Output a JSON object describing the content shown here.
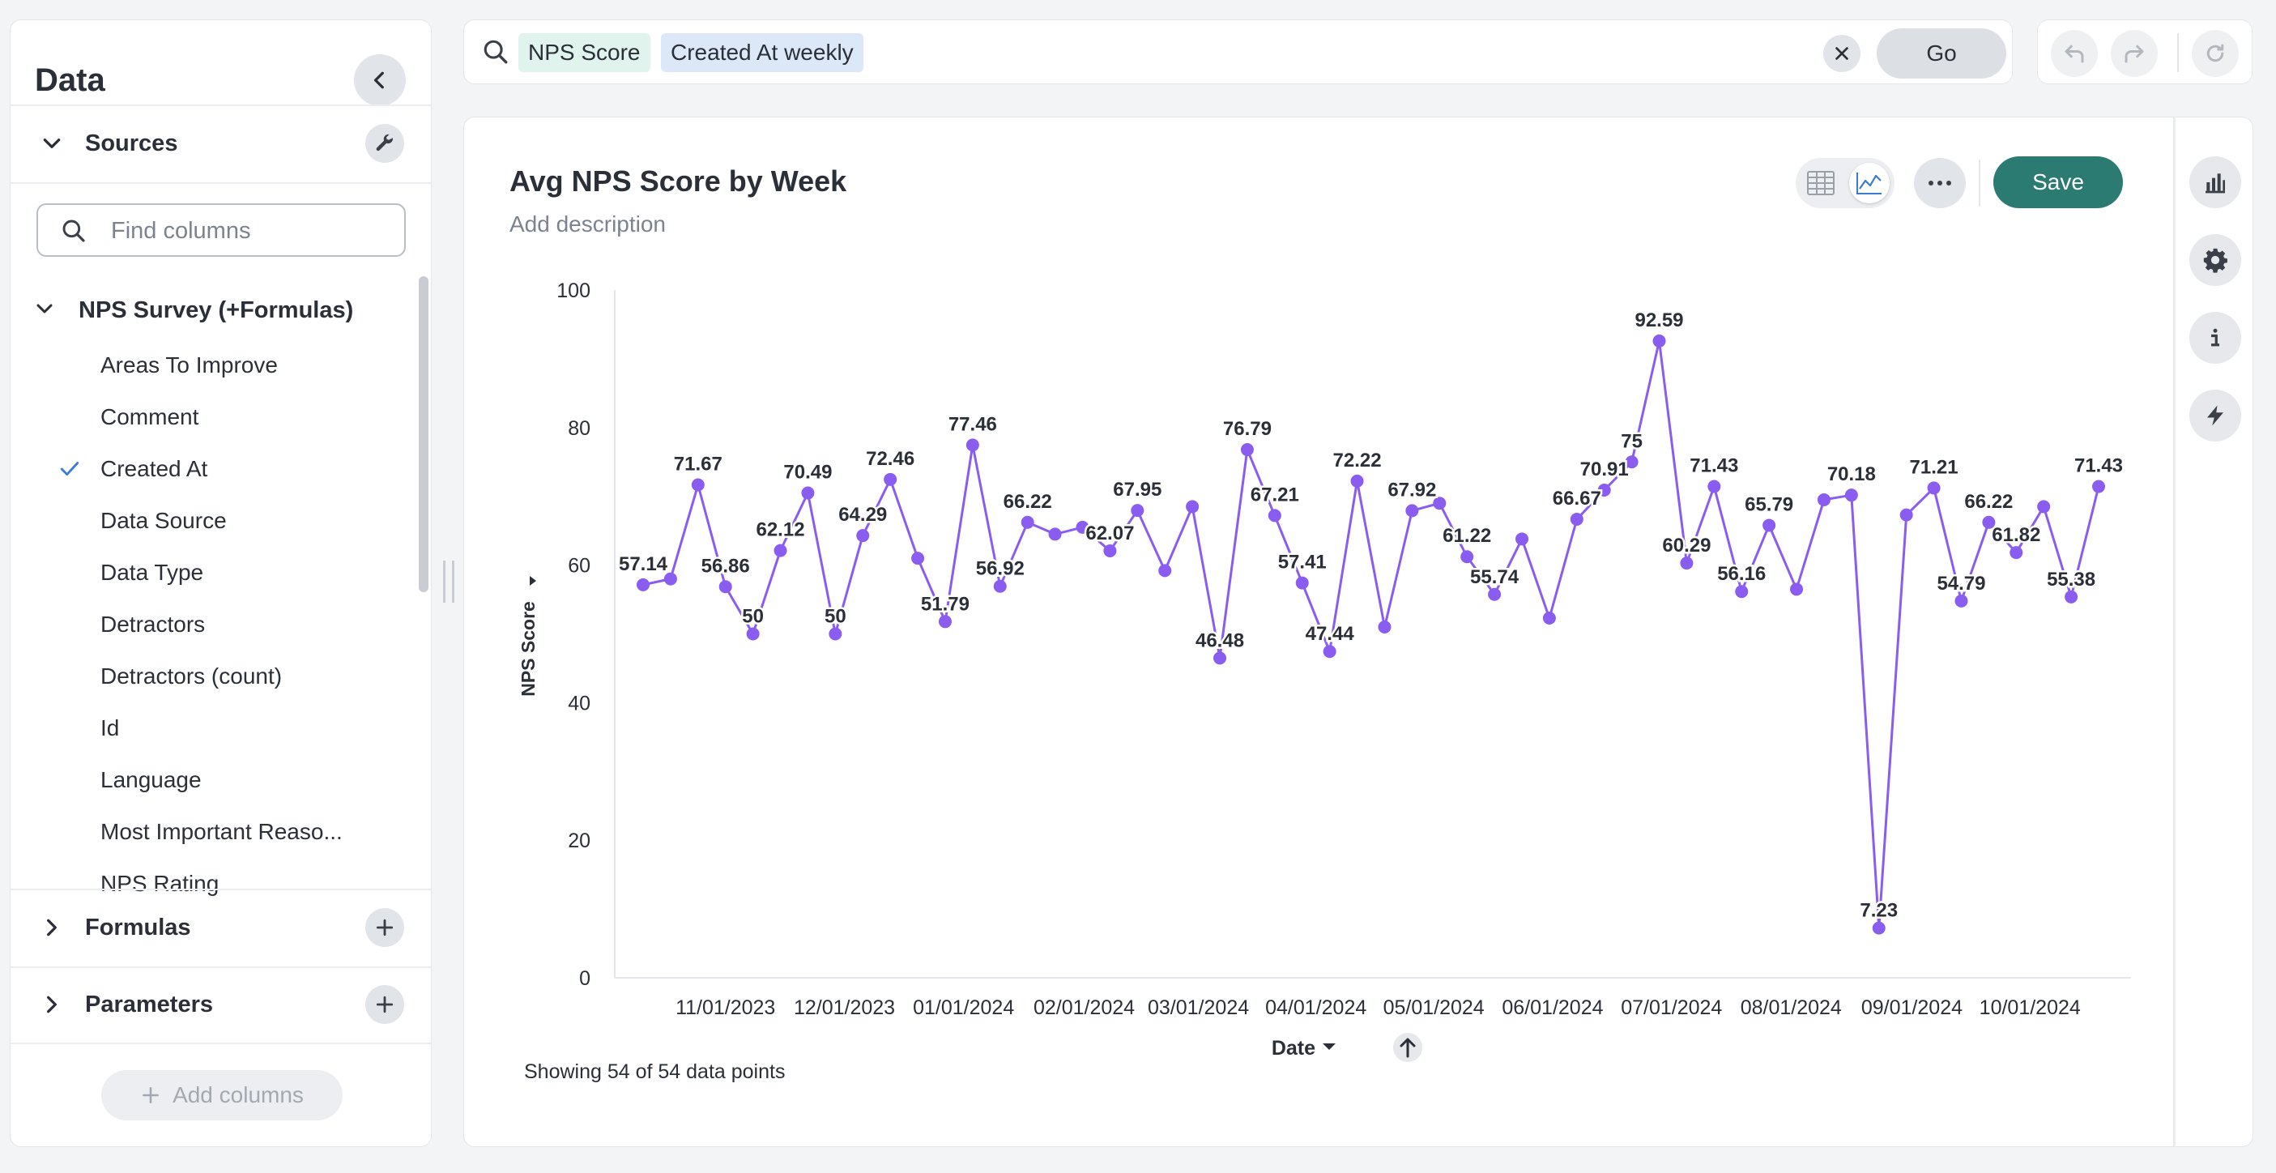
{
  "sidebar": {
    "title": "Data",
    "sources_label": "Sources",
    "find_placeholder": "Find columns",
    "dataset_name": "NPS Survey (+Formulas)",
    "columns": [
      {
        "label": "Areas To Improve",
        "selected": false
      },
      {
        "label": "Comment",
        "selected": false
      },
      {
        "label": "Created At",
        "selected": true
      },
      {
        "label": "Data Source",
        "selected": false
      },
      {
        "label": "Data Type",
        "selected": false
      },
      {
        "label": "Detractors",
        "selected": false
      },
      {
        "label": "Detractors (count)",
        "selected": false
      },
      {
        "label": "Id",
        "selected": false
      },
      {
        "label": "Language",
        "selected": false
      },
      {
        "label": "Most Important Reaso...",
        "selected": false
      },
      {
        "label": "NPS Rating",
        "selected": false
      }
    ],
    "formulas_label": "Formulas",
    "parameters_label": "Parameters",
    "add_columns_label": "Add columns"
  },
  "query": {
    "chips": [
      "NPS Score",
      "Created At weekly"
    ],
    "go_label": "Go"
  },
  "main": {
    "title": "Avg NPS Score by Week",
    "description_placeholder": "Add description",
    "save_label": "Save",
    "footer": "Showing 54 of 54 data points",
    "x_axis_title": "Date"
  },
  "colors": {
    "accent": "#2c7b72",
    "series": "#8b5cf0"
  },
  "chart_data": {
    "type": "line",
    "title": "Avg NPS Score by Week",
    "xlabel": "Date",
    "ylabel": "NPS Score",
    "ylim": [
      0,
      100
    ],
    "yticks": [
      0,
      20,
      40,
      60,
      80,
      100
    ],
    "grid": false,
    "x_tick_labels": [
      "11/01/2023",
      "12/01/2023",
      "01/01/2024",
      "02/01/2024",
      "03/01/2024",
      "04/01/2024",
      "05/01/2024",
      "06/01/2024",
      "07/01/2024",
      "08/01/2024",
      "09/01/2024",
      "10/01/2024"
    ],
    "x_tick_positions": [
      3,
      7.33,
      11.67,
      16.06,
      20.22,
      24.5,
      28.79,
      33.12,
      37.45,
      41.8,
      46.2,
      50.5
    ],
    "values": [
      57.14,
      58,
      71.67,
      56.86,
      50,
      62.12,
      70.49,
      50,
      64.29,
      72.46,
      61,
      51.79,
      77.46,
      56.92,
      66.22,
      64.5,
      65.5,
      62.07,
      67.95,
      59.2,
      68.5,
      46.48,
      76.79,
      67.21,
      57.41,
      47.44,
      72.22,
      51,
      67.92,
      69,
      61.22,
      55.74,
      63.8,
      52.3,
      66.67,
      70.91,
      75,
      92.59,
      60.29,
      71.43,
      56.16,
      65.79,
      56.5,
      69.5,
      70.18,
      7.23,
      67.3,
      71.21,
      54.79,
      66.22,
      61.82,
      68.5,
      55.38,
      71.43
    ],
    "point_labels": [
      "57.14",
      "",
      "71.67",
      "56.86",
      "50",
      "62.12",
      "70.49",
      "50",
      "64.29",
      "72.46",
      "",
      "51.79",
      "77.46",
      "56.92",
      "66.22",
      "",
      "",
      "62.07",
      "67.95",
      "",
      "",
      "46.48",
      "76.79",
      "67.21",
      "57.41",
      "47.44",
      "72.22",
      "",
      "67.92",
      "",
      "61.22",
      "55.74",
      "",
      "",
      "66.67",
      "70.91",
      "75",
      "92.59",
      "60.29",
      "71.43",
      "56.16",
      "65.79",
      "",
      "",
      "70.18",
      "7.23",
      "",
      "71.21",
      "54.79",
      "66.22",
      "61.82",
      "",
      "55.38",
      "71.43"
    ]
  }
}
